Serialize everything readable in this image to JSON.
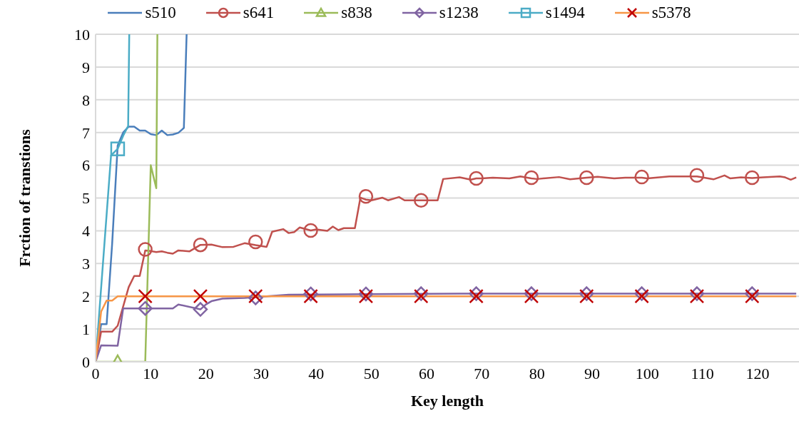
{
  "chart_data": {
    "type": "line",
    "xlabel": "Key length",
    "ylabel": "Frction of transtions",
    "xlim": [
      0,
      127.5
    ],
    "xticks": [
      0,
      10,
      20,
      30,
      40,
      50,
      60,
      70,
      80,
      90,
      100,
      110,
      120
    ],
    "ylim": [
      0,
      10
    ],
    "yticks": [
      0,
      1,
      2,
      3,
      4,
      5,
      6,
      7,
      8,
      9,
      10
    ],
    "grid": "y",
    "legend": "top",
    "series": [
      {
        "name": "s510",
        "color": "#4a7ebb",
        "x": [
          0,
          1,
          2,
          3,
          4,
          5,
          6,
          7,
          8,
          9,
          10,
          11,
          12,
          13,
          14,
          15,
          16,
          16.5
        ],
        "values": [
          0,
          1.15,
          1.15,
          3.6,
          6.6,
          7.0,
          7.18,
          7.18,
          7.06,
          7.06,
          6.95,
          6.92,
          7.06,
          6.92,
          6.94,
          6.99,
          7.14,
          10
        ]
      },
      {
        "name": "s641",
        "color": "#c0504d",
        "x": [
          0,
          1,
          3,
          4,
          6,
          7,
          8,
          9,
          10,
          11,
          12,
          13,
          14,
          15,
          17,
          19,
          21,
          23,
          25,
          27,
          29,
          31,
          32,
          34,
          35,
          36,
          37,
          39,
          40,
          42,
          43,
          44,
          45,
          47,
          48,
          49,
          50,
          52,
          53,
          55,
          56,
          59,
          62,
          63,
          66,
          68,
          69,
          70,
          72,
          75,
          77,
          79,
          80,
          84,
          86,
          89,
          91,
          94,
          96,
          99,
          100,
          104,
          109,
          112,
          114,
          115,
          117,
          119,
          121,
          124,
          125,
          126,
          127
        ],
        "values": [
          0,
          0.92,
          0.92,
          1.1,
          2.28,
          2.62,
          2.62,
          3.4,
          3.38,
          3.35,
          3.37,
          3.33,
          3.3,
          3.4,
          3.37,
          3.57,
          3.58,
          3.5,
          3.51,
          3.62,
          3.56,
          3.51,
          3.97,
          4.05,
          3.93,
          3.96,
          4.1,
          4.01,
          4.04,
          4.0,
          4.13,
          4.02,
          4.08,
          4.08,
          5.01,
          4.95,
          4.93,
          5.01,
          4.93,
          5.03,
          4.93,
          4.93,
          4.93,
          5.58,
          5.63,
          5.56,
          5.6,
          5.6,
          5.62,
          5.6,
          5.66,
          5.6,
          5.58,
          5.64,
          5.57,
          5.62,
          5.65,
          5.6,
          5.62,
          5.62,
          5.6,
          5.66,
          5.66,
          5.57,
          5.69,
          5.6,
          5.63,
          5.61,
          5.63,
          5.66,
          5.63,
          5.56,
          5.63
        ]
      },
      {
        "type": "scatter",
        "color": "#c0504d",
        "marker": "circle",
        "x": [
          9,
          19,
          29,
          39,
          49,
          59,
          69,
          79,
          89,
          99,
          109,
          119
        ],
        "values": [
          3.43,
          3.57,
          3.66,
          4.01,
          5.05,
          4.93,
          5.6,
          5.62,
          5.62,
          5.64,
          5.69,
          5.62
        ]
      },
      {
        "name": "s838",
        "color": "#9bbb59",
        "x": [
          0,
          9,
          10,
          11,
          11.2
        ],
        "values": [
          0,
          0,
          6.0,
          5.3,
          10
        ]
      },
      {
        "type": "scatter",
        "color": "#9bbb59",
        "marker": "triangle",
        "x": [
          4
        ],
        "values": [
          0
        ]
      },
      {
        "name": "s1238",
        "color": "#8064a2",
        "x": [
          0,
          1,
          4,
          5,
          9,
          14,
          15,
          19,
          20,
          21,
          23,
          27,
          31,
          35,
          45,
          66,
          127
        ],
        "values": [
          0,
          0.5,
          0.49,
          1.63,
          1.63,
          1.63,
          1.75,
          1.6,
          1.75,
          1.85,
          1.93,
          1.95,
          2.0,
          2.05,
          2.06,
          2.08,
          2.08
        ]
      },
      {
        "type": "scatter",
        "color": "#8064a2",
        "marker": "diamond",
        "x": [
          9,
          19,
          29,
          39,
          49,
          59,
          69,
          79,
          89,
          99,
          109,
          119
        ],
        "values": [
          1.63,
          1.6,
          1.95,
          2.07,
          2.07,
          2.08,
          2.08,
          2.08,
          2.08,
          2.08,
          2.08,
          2.08
        ]
      },
      {
        "name": "s1494",
        "color": "#4bacc6",
        "x": [
          0,
          2.8,
          3.7,
          4,
          5,
          5.9,
          6.1
        ],
        "values": [
          0,
          6.3,
          6.45,
          6.5,
          6.9,
          7.2,
          10
        ]
      },
      {
        "type": "scatter",
        "color": "#4bacc6",
        "marker": "square",
        "x": [
          4
        ],
        "values": [
          6.5
        ]
      },
      {
        "name": "s5378",
        "color": "#f79646",
        "x": [
          0,
          1,
          2,
          3,
          4,
          127
        ],
        "values": [
          0,
          1.53,
          1.87,
          1.87,
          2.0,
          2.0
        ]
      },
      {
        "type": "scatter",
        "color": "#c00000",
        "marker": "cross",
        "x": [
          9,
          19,
          29,
          39,
          49,
          59,
          69,
          79,
          89,
          99,
          109,
          119
        ],
        "values": [
          2,
          2,
          2,
          2,
          2,
          2,
          2,
          2,
          2,
          2,
          2,
          2
        ]
      }
    ]
  }
}
